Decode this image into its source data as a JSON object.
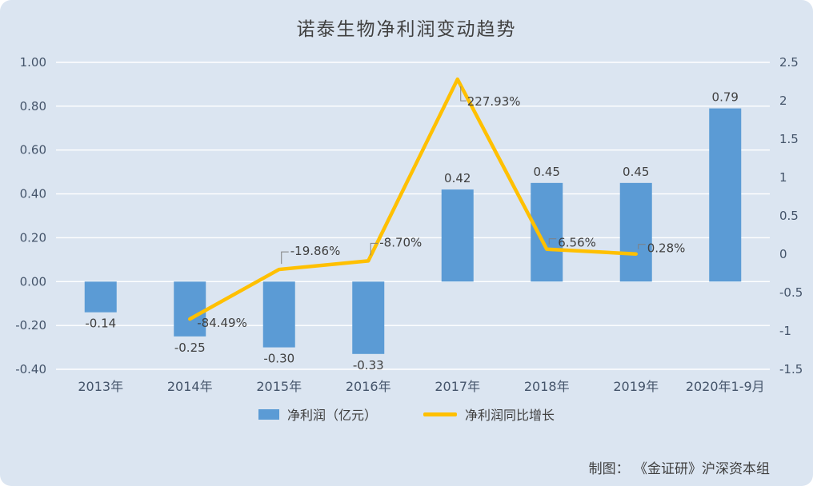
{
  "title": "诺泰生物净利润变动趋势",
  "credit": "制图： 《金证研》沪深资本组",
  "legend": [
    {
      "label": "净利润（亿元）",
      "type": "bar"
    },
    {
      "label": "净利润同比增长",
      "type": "line"
    }
  ],
  "colors": {
    "background": "#dbe5f1",
    "bar": "#5b9bd5",
    "line": "#ffc000",
    "grid": "#ffffff",
    "axis_text": "#44546a",
    "label_text": "#404040",
    "leader": "#808080"
  },
  "chart_data": {
    "type": "bar",
    "subtype": "combo bar + line, dual axis",
    "title": "诺泰生物净利润变动趋势",
    "categories": [
      "2013年",
      "2014年",
      "2015年",
      "2016年",
      "2017年",
      "2018年",
      "2019年",
      "2020年1-9月"
    ],
    "series": [
      {
        "name": "净利润（亿元）",
        "type": "bar",
        "axis": "left",
        "values": [
          -0.14,
          -0.25,
          -0.3,
          -0.33,
          0.42,
          0.45,
          0.45,
          0.79
        ],
        "labels": [
          "-0.14",
          "-0.25",
          "-0.30",
          "-0.33",
          "0.42",
          "0.45",
          "0.45",
          "0.79"
        ]
      },
      {
        "name": "净利润同比增长",
        "type": "line",
        "axis": "right",
        "values": [
          null,
          -0.8449,
          -0.1986,
          -0.087,
          2.2793,
          0.0656,
          0.0028,
          null
        ],
        "labels": [
          null,
          "-84.49%",
          "-19.86%",
          "-8.70%",
          "227.93%",
          "6.56%",
          "0.28%",
          null
        ]
      }
    ],
    "left_axis": {
      "min": -0.4,
      "max": 1.0,
      "ticks": [
        "1.00",
        "0.80",
        "0.60",
        "0.40",
        "0.20",
        "0.00",
        "-0.20",
        "-0.40"
      ]
    },
    "right_axis": {
      "min": -1.5,
      "max": 2.5,
      "ticks": [
        "2.5",
        "2",
        "1.5",
        "1",
        "0.5",
        "0",
        "-0.5",
        "-1",
        "-1.5"
      ]
    },
    "grid": "horizontal white gridlines",
    "legend_position": "bottom center"
  }
}
